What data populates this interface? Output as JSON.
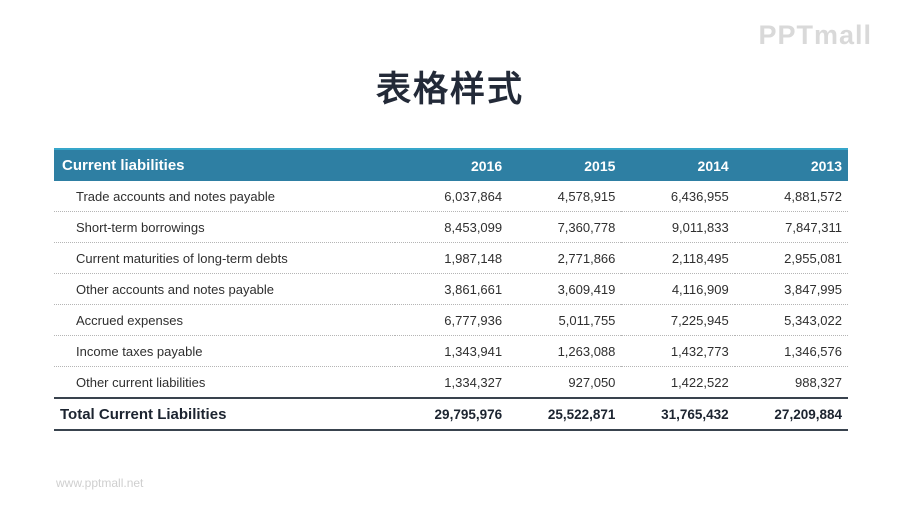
{
  "page": {
    "title": "表格样式",
    "watermark_logo": "PPTmall",
    "footer_url": "www.pptmall.net"
  },
  "colors": {
    "header_bg": "#2E7FA3",
    "header_top_border": "#36A6CA",
    "title_text": "#232A38",
    "total_rule": "#39434E",
    "watermark": "#D9D9D9"
  },
  "table": {
    "header": {
      "label": "Current liabilities",
      "years": [
        "2016",
        "2015",
        "2014",
        "2013"
      ]
    },
    "rows": [
      {
        "label": "Trade accounts and notes payable",
        "values": [
          "6,037,864",
          "4,578,915",
          "6,436,955",
          "4,881,572"
        ]
      },
      {
        "label": "Short-term borrowings",
        "values": [
          "8,453,099",
          "7,360,778",
          "9,011,833",
          "7,847,311"
        ]
      },
      {
        "label": "Current maturities of long-term debts",
        "values": [
          "1,987,148",
          "2,771,866",
          "2,118,495",
          "2,955,081"
        ]
      },
      {
        "label": "Other accounts and notes payable",
        "values": [
          "3,861,661",
          "3,609,419",
          "4,116,909",
          "3,847,995"
        ]
      },
      {
        "label": "Accrued expenses",
        "values": [
          "6,777,936",
          "5,011,755",
          "7,225,945",
          "5,343,022"
        ]
      },
      {
        "label": "Income taxes payable",
        "values": [
          "1,343,941",
          "1,263,088",
          "1,432,773",
          "1,346,576"
        ]
      },
      {
        "label": "Other current liabilities",
        "values": [
          "1,334,327",
          "927,050",
          "1,422,522",
          "988,327"
        ]
      }
    ],
    "total": {
      "label": "Total Current Liabilities",
      "values": [
        "29,795,976",
        "25,522,871",
        "31,765,432",
        "27,209,884"
      ]
    }
  }
}
